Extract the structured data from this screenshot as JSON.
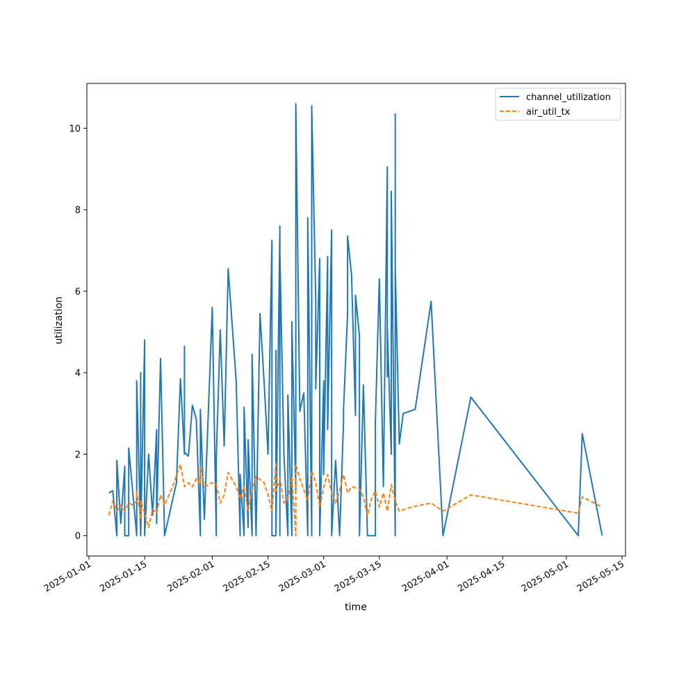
{
  "chart_data": {
    "type": "line",
    "xlabel": "time",
    "ylabel": "utilization",
    "x_axis_type": "date",
    "xlim": [
      "2025-01-01",
      "2025-05-15"
    ],
    "ylim": [
      -0.5,
      11.1
    ],
    "x_ticks": [
      "2025-01-01",
      "2025-01-15",
      "2025-02-01",
      "2025-02-15",
      "2025-03-01",
      "2025-03-15",
      "2025-04-01",
      "2025-04-15",
      "2025-05-01",
      "2025-05-15"
    ],
    "y_ticks": [
      0,
      2,
      4,
      6,
      8,
      10
    ],
    "grid": false,
    "legend_position": "top-right",
    "colors": {
      "channel_utilization": "#1f77b4",
      "air_util_tx": "#ff7f0e"
    },
    "series": [
      {
        "name": "channel_utilization",
        "line_style": "solid",
        "points": [
          [
            "2025-01-06",
            1.05
          ],
          [
            "2025-01-07",
            1.1
          ],
          [
            "2025-01-08",
            0.0
          ],
          [
            "2025-01-08",
            1.85
          ],
          [
            "2025-01-09",
            0.3
          ],
          [
            "2025-01-10",
            1.7
          ],
          [
            "2025-01-10",
            0.0
          ],
          [
            "2025-01-11",
            0.0
          ],
          [
            "2025-01-11",
            2.15
          ],
          [
            "2025-01-13",
            0.0
          ],
          [
            "2025-01-13",
            3.8
          ],
          [
            "2025-01-14",
            0.0
          ],
          [
            "2025-01-14",
            4.0
          ],
          [
            "2025-01-14",
            0.0
          ],
          [
            "2025-01-15",
            4.8
          ],
          [
            "2025-01-15",
            0.0
          ],
          [
            "2025-01-16",
            2.0
          ],
          [
            "2025-01-17",
            0.5
          ],
          [
            "2025-01-18",
            2.6
          ],
          [
            "2025-01-18",
            0.3
          ],
          [
            "2025-01-19",
            4.35
          ],
          [
            "2025-01-20",
            0.0
          ],
          [
            "2025-01-23",
            1.3
          ],
          [
            "2025-01-24",
            3.85
          ],
          [
            "2025-01-25",
            2.0
          ],
          [
            "2025-01-25",
            4.65
          ],
          [
            "2025-01-25",
            2.05
          ],
          [
            "2025-01-26",
            1.95
          ],
          [
            "2025-01-27",
            3.2
          ],
          [
            "2025-01-28",
            2.85
          ],
          [
            "2025-01-29",
            0.0
          ],
          [
            "2025-01-29",
            3.1
          ],
          [
            "2025-01-30",
            0.4
          ],
          [
            "2025-01-31",
            3.0
          ],
          [
            "2025-02-01",
            5.6
          ],
          [
            "2025-02-02",
            0.0
          ],
          [
            "2025-02-02",
            1.9
          ],
          [
            "2025-02-03",
            5.05
          ],
          [
            "2025-02-04",
            2.2
          ],
          [
            "2025-02-05",
            6.55
          ],
          [
            "2025-02-07",
            3.8
          ],
          [
            "2025-02-08",
            0.0
          ],
          [
            "2025-02-08",
            1.5
          ],
          [
            "2025-02-09",
            0.0
          ],
          [
            "2025-02-09",
            3.15
          ],
          [
            "2025-02-10",
            0.2
          ],
          [
            "2025-02-10",
            2.35
          ],
          [
            "2025-02-11",
            0.0
          ],
          [
            "2025-02-11",
            4.45
          ],
          [
            "2025-02-12",
            0.0
          ],
          [
            "2025-02-13",
            5.45
          ],
          [
            "2025-02-14",
            3.8
          ],
          [
            "2025-02-15",
            2.0
          ],
          [
            "2025-02-16",
            7.25
          ],
          [
            "2025-02-16",
            0.0
          ],
          [
            "2025-02-17",
            0.0
          ],
          [
            "2025-02-17",
            4.55
          ],
          [
            "2025-02-17",
            0.0
          ],
          [
            "2025-02-18",
            7.6
          ],
          [
            "2025-02-18",
            0.0
          ],
          [
            "2025-02-18",
            6.95
          ],
          [
            "2025-02-19",
            2.0
          ],
          [
            "2025-02-20",
            0.0
          ],
          [
            "2025-02-20",
            3.45
          ],
          [
            "2025-02-21",
            0.0
          ],
          [
            "2025-02-21",
            5.25
          ],
          [
            "2025-02-22",
            1.1
          ],
          [
            "2025-02-22",
            10.6
          ],
          [
            "2025-02-23",
            3.05
          ],
          [
            "2025-02-24",
            3.5
          ],
          [
            "2025-02-25",
            0.0
          ],
          [
            "2025-02-25",
            7.8
          ],
          [
            "2025-02-26",
            0.0
          ],
          [
            "2025-02-26",
            10.55
          ],
          [
            "2025-02-27",
            5.8
          ],
          [
            "2025-02-27",
            3.6
          ],
          [
            "2025-02-28",
            6.8
          ],
          [
            "2025-02-28",
            0.0
          ],
          [
            "2025-03-01",
            3.8
          ],
          [
            "2025-03-01",
            1.5
          ],
          [
            "2025-03-02",
            6.85
          ],
          [
            "2025-03-02",
            2.6
          ],
          [
            "2025-03-03",
            7.5
          ],
          [
            "2025-03-03",
            0.0
          ],
          [
            "2025-03-04",
            1.85
          ],
          [
            "2025-03-05",
            0.0
          ],
          [
            "2025-03-06",
            2.8
          ],
          [
            "2025-03-06",
            3.1
          ],
          [
            "2025-03-07",
            5.45
          ],
          [
            "2025-03-07",
            7.35
          ],
          [
            "2025-03-08",
            6.4
          ],
          [
            "2025-03-09",
            2.95
          ],
          [
            "2025-03-09",
            5.9
          ],
          [
            "2025-03-10",
            4.9
          ],
          [
            "2025-03-10",
            0.0
          ],
          [
            "2025-03-11",
            3.7
          ],
          [
            "2025-03-12",
            0.0
          ],
          [
            "2025-03-14",
            0.0
          ],
          [
            "2025-03-14",
            2.8
          ],
          [
            "2025-03-15",
            6.3
          ],
          [
            "2025-03-16",
            1.2
          ],
          [
            "2025-03-17",
            9.05
          ],
          [
            "2025-03-17",
            3.9
          ],
          [
            "2025-03-17",
            5.1
          ],
          [
            "2025-03-18",
            2.0
          ],
          [
            "2025-03-18",
            8.45
          ],
          [
            "2025-03-19",
            0.0
          ],
          [
            "2025-03-19",
            10.35
          ],
          [
            "2025-03-19",
            1.5
          ],
          [
            "2025-03-19",
            6.6
          ],
          [
            "2025-03-20",
            2.25
          ],
          [
            "2025-03-21",
            3.0
          ],
          [
            "2025-03-24",
            3.1
          ],
          [
            "2025-03-28",
            5.75
          ],
          [
            "2025-03-31",
            0.0
          ],
          [
            "2025-04-07",
            3.4
          ],
          [
            "2025-05-04",
            0.0
          ],
          [
            "2025-05-05",
            2.5
          ],
          [
            "2025-05-10",
            0.0
          ]
        ]
      },
      {
        "name": "air_util_tx",
        "line_style": "dashed",
        "points": [
          [
            "2025-01-06",
            0.5
          ],
          [
            "2025-01-07",
            0.85
          ],
          [
            "2025-01-08",
            0.6
          ],
          [
            "2025-01-09",
            0.75
          ],
          [
            "2025-01-10",
            0.6
          ],
          [
            "2025-01-11",
            0.8
          ],
          [
            "2025-01-12",
            0.75
          ],
          [
            "2025-01-13",
            0.85
          ],
          [
            "2025-01-13",
            1.1
          ],
          [
            "2025-01-14",
            0.4
          ],
          [
            "2025-01-14",
            0.85
          ],
          [
            "2025-01-15",
            0.55
          ],
          [
            "2025-01-16",
            0.2
          ],
          [
            "2025-01-17",
            0.65
          ],
          [
            "2025-01-18",
            0.55
          ],
          [
            "2025-01-19",
            1.0
          ],
          [
            "2025-01-20",
            0.75
          ],
          [
            "2025-01-22",
            1.2
          ],
          [
            "2025-01-24",
            1.75
          ],
          [
            "2025-01-25",
            1.2
          ],
          [
            "2025-01-26",
            1.3
          ],
          [
            "2025-01-27",
            1.2
          ],
          [
            "2025-01-28",
            1.4
          ],
          [
            "2025-01-29",
            1.25
          ],
          [
            "2025-01-29",
            1.7
          ],
          [
            "2025-01-30",
            1.2
          ],
          [
            "2025-02-01",
            1.3
          ],
          [
            "2025-02-02",
            1.25
          ],
          [
            "2025-02-03",
            0.8
          ],
          [
            "2025-02-04",
            1.0
          ],
          [
            "2025-02-05",
            1.55
          ],
          [
            "2025-02-07",
            1.2
          ],
          [
            "2025-02-08",
            0.9
          ],
          [
            "2025-02-09",
            1.2
          ],
          [
            "2025-02-10",
            0.6
          ],
          [
            "2025-02-11",
            1.1
          ],
          [
            "2025-02-12",
            1.45
          ],
          [
            "2025-02-14",
            1.3
          ],
          [
            "2025-02-15",
            1.0
          ],
          [
            "2025-02-16",
            0.6
          ],
          [
            "2025-02-17",
            1.8
          ],
          [
            "2025-02-17",
            1.1
          ],
          [
            "2025-02-18",
            1.4
          ],
          [
            "2025-02-19",
            0.8
          ],
          [
            "2025-02-20",
            0.9
          ],
          [
            "2025-02-21",
            1.45
          ],
          [
            "2025-02-22",
            0.0
          ],
          [
            "2025-02-22",
            1.75
          ],
          [
            "2025-02-23",
            1.4
          ],
          [
            "2025-02-25",
            0.85
          ],
          [
            "2025-02-26",
            1.6
          ],
          [
            "2025-02-27",
            1.3
          ],
          [
            "2025-02-28",
            0.7
          ],
          [
            "2025-03-01",
            1.2
          ],
          [
            "2025-03-02",
            1.5
          ],
          [
            "2025-03-03",
            1.05
          ],
          [
            "2025-03-04",
            0.8
          ],
          [
            "2025-03-05",
            1.1
          ],
          [
            "2025-03-06",
            1.5
          ],
          [
            "2025-03-07",
            1.05
          ],
          [
            "2025-03-08",
            1.2
          ],
          [
            "2025-03-10",
            1.15
          ],
          [
            "2025-03-11",
            0.95
          ],
          [
            "2025-03-12",
            0.5
          ],
          [
            "2025-03-13",
            0.9
          ],
          [
            "2025-03-14",
            1.1
          ],
          [
            "2025-03-15",
            0.7
          ],
          [
            "2025-03-16",
            1.05
          ],
          [
            "2025-03-17",
            0.6
          ],
          [
            "2025-03-18",
            1.25
          ],
          [
            "2025-03-19",
            0.85
          ],
          [
            "2025-03-20",
            0.6
          ],
          [
            "2025-03-23",
            0.7
          ],
          [
            "2025-03-28",
            0.8
          ],
          [
            "2025-03-31",
            0.6
          ],
          [
            "2025-04-07",
            1.0
          ],
          [
            "2025-05-04",
            0.55
          ],
          [
            "2025-05-05",
            0.95
          ],
          [
            "2025-05-10",
            0.7
          ]
        ]
      }
    ]
  }
}
